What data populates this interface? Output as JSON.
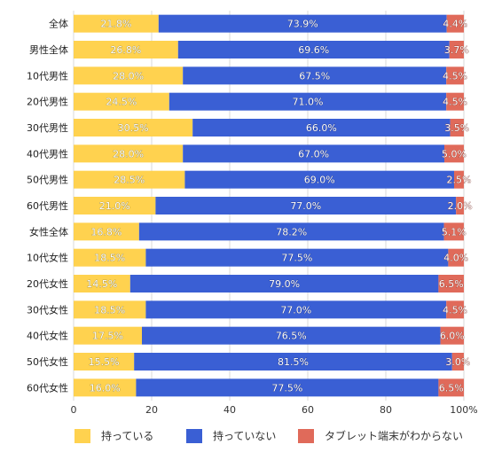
{
  "chart_data": {
    "type": "bar",
    "orientation": "horizontal",
    "stacked": true,
    "categories": [
      "全体",
      "男性全体",
      "10代男性",
      "20代男性",
      "30代男性",
      "40代男性",
      "50代男性",
      "60代男性",
      "女性全体",
      "10代女性",
      "20代女性",
      "30代女性",
      "40代女性",
      "50代女性",
      "60代女性"
    ],
    "series": [
      {
        "name": "持っている",
        "color": "#ffd24f",
        "values": [
          21.8,
          26.8,
          28.0,
          24.5,
          30.5,
          28.0,
          28.5,
          21.0,
          16.8,
          18.5,
          14.5,
          18.5,
          17.5,
          15.5,
          16.0
        ],
        "labels": [
          "21.8%",
          "26.8%",
          "28.0%",
          "24.5%",
          "30.5%",
          "28.0%",
          "28.5%",
          "21.0%",
          "16.8%",
          "18.5%",
          "14.5%",
          "18.5%",
          "17.5%",
          "15.5%",
          "16.0%"
        ]
      },
      {
        "name": "持っていない",
        "color": "#3a5fd4",
        "values": [
          73.9,
          69.6,
          67.5,
          71.0,
          66.0,
          67.0,
          69.0,
          77.0,
          78.2,
          77.5,
          79.0,
          77.0,
          76.5,
          81.5,
          77.5
        ],
        "labels": [
          "73.9%",
          "69.6%",
          "67.5%",
          "71.0%",
          "66.0%",
          "67.0%",
          "69.0%",
          "77.0%",
          "78.2%",
          "77.5%",
          "79.0%",
          "77.0%",
          "76.5%",
          "81.5%",
          "77.5%"
        ]
      },
      {
        "name": "タブレット端末がわからない",
        "color": "#e06a5a",
        "values": [
          4.4,
          3.7,
          4.5,
          4.5,
          3.5,
          5.0,
          2.5,
          2.0,
          5.1,
          4.0,
          6.5,
          4.5,
          6.0,
          3.0,
          6.5
        ],
        "labels": [
          "4.4%",
          "3.7%",
          "4.5%",
          "4.5%",
          "3.5%",
          "5.0%",
          "2.5%",
          "2.0%",
          "5.1%",
          "4.0%",
          "6.5%",
          "4.5%",
          "6.0%",
          "3.0%",
          "6.5%"
        ]
      }
    ],
    "xlim": [
      0,
      100
    ],
    "xticks": [
      "0",
      "20",
      "40",
      "60",
      "80",
      "100%"
    ],
    "grid": true,
    "legend_position": "bottom"
  }
}
